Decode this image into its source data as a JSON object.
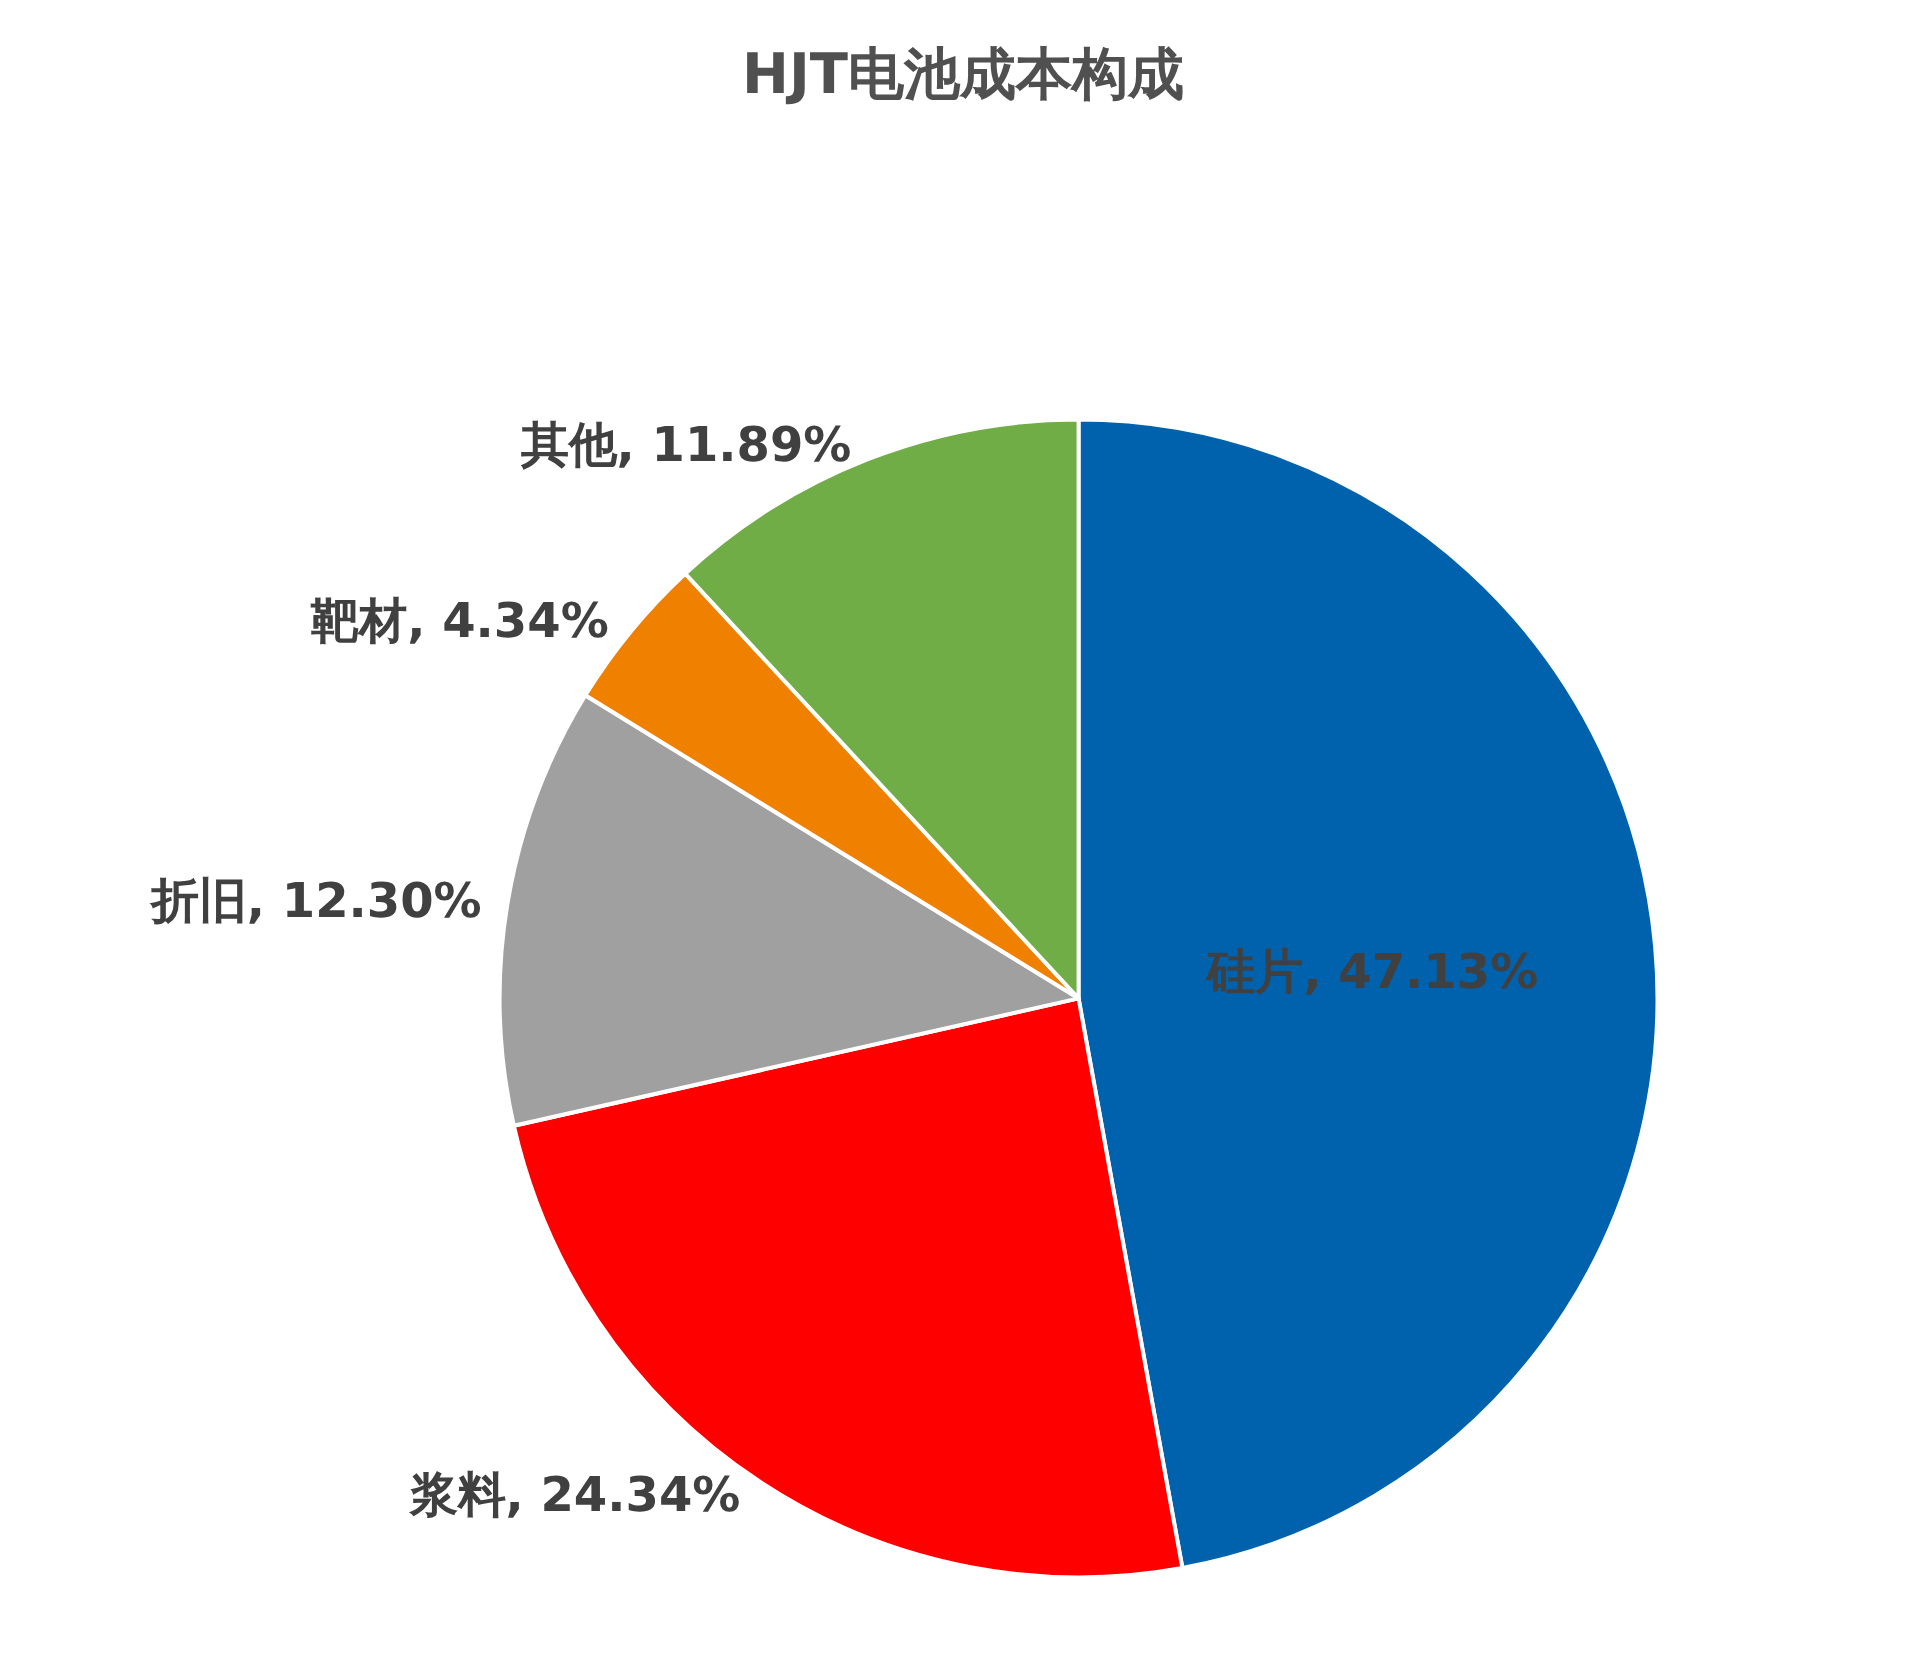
{
  "chart_data": {
    "type": "pie",
    "title": "HJT电池成本构成",
    "categories": [
      "硅片",
      "浆料",
      "折旧",
      "靶材",
      "其他"
    ],
    "values": [
      47.13,
      24.34,
      12.3,
      4.34,
      11.89
    ],
    "value_labels": [
      "47.13%",
      "24.34%",
      "12.30%",
      "4.34%",
      "11.89%"
    ],
    "colors": [
      "#0062ad",
      "#ff0000",
      "#a0a0a0",
      "#f08000",
      "#70ad47"
    ],
    "legend": false
  }
}
